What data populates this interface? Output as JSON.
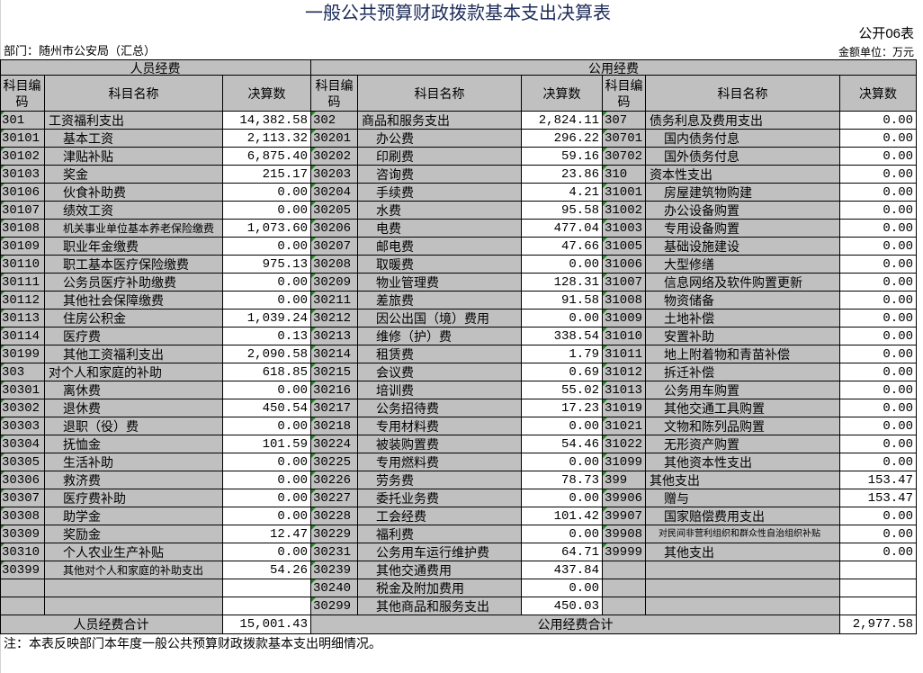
{
  "title": "一般公共预算财政拨款基本支出决算表",
  "form_no": "公开06表",
  "department": "部门：随州市公安局（汇总）",
  "unit": "金额单位：万元",
  "groups": {
    "personnel": "人员经费",
    "public": "公用经费"
  },
  "headers": {
    "code": "科目编码",
    "name": "科目名称",
    "amount": "决算数"
  },
  "personnel_rows": [
    {
      "code": "301",
      "name": "工资福利支出",
      "amount": "14,382.58",
      "level": 0
    },
    {
      "code": "30101",
      "name": "基本工资",
      "amount": "2,113.32",
      "level": 1
    },
    {
      "code": "30102",
      "name": "津贴补贴",
      "amount": "6,875.40",
      "level": 1
    },
    {
      "code": "30103",
      "name": "奖金",
      "amount": "215.17",
      "level": 1
    },
    {
      "code": "30106",
      "name": "伙食补助费",
      "amount": "0.00",
      "level": 1
    },
    {
      "code": "30107",
      "name": "绩效工资",
      "amount": "0.00",
      "level": 1
    },
    {
      "code": "30108",
      "name": "机关事业单位基本养老保险缴费",
      "amount": "1,073.60",
      "level": 2
    },
    {
      "code": "30109",
      "name": "职业年金缴费",
      "amount": "0.00",
      "level": 1
    },
    {
      "code": "30110",
      "name": "职工基本医疗保险缴费",
      "amount": "975.13",
      "level": 1
    },
    {
      "code": "30111",
      "name": "公务员医疗补助缴费",
      "amount": "0.00",
      "level": 1
    },
    {
      "code": "30112",
      "name": "其他社会保障缴费",
      "amount": "0.00",
      "level": 1
    },
    {
      "code": "30113",
      "name": "住房公积金",
      "amount": "1,039.24",
      "level": 1
    },
    {
      "code": "30114",
      "name": "医疗费",
      "amount": "0.13",
      "level": 1
    },
    {
      "code": "30199",
      "name": "其他工资福利支出",
      "amount": "2,090.58",
      "level": 1
    },
    {
      "code": "303",
      "name": "对个人和家庭的补助",
      "amount": "618.85",
      "level": 0
    },
    {
      "code": "30301",
      "name": "离休费",
      "amount": "0.00",
      "level": 1
    },
    {
      "code": "30302",
      "name": "退休费",
      "amount": "450.54",
      "level": 1
    },
    {
      "code": "30303",
      "name": "退职（役）费",
      "amount": "0.00",
      "level": 1
    },
    {
      "code": "30304",
      "name": "抚恤金",
      "amount": "101.59",
      "level": 1
    },
    {
      "code": "30305",
      "name": "生活补助",
      "amount": "0.00",
      "level": 1
    },
    {
      "code": "30306",
      "name": "救济费",
      "amount": "0.00",
      "level": 1
    },
    {
      "code": "30307",
      "name": "医疗费补助",
      "amount": "0.00",
      "level": 1
    },
    {
      "code": "30308",
      "name": "助学金",
      "amount": "0.00",
      "level": 1
    },
    {
      "code": "30309",
      "name": "奖励金",
      "amount": "12.47",
      "level": 1
    },
    {
      "code": "30310",
      "name": "个人农业生产补贴",
      "amount": "0.00",
      "level": 1
    },
    {
      "code": "30399",
      "name": "其他对个人和家庭的补助支出",
      "amount": "54.26",
      "level": 2
    }
  ],
  "public_rows_1": [
    {
      "code": "302",
      "name": "商品和服务支出",
      "amount": "2,824.11",
      "level": 0
    },
    {
      "code": "30201",
      "name": "办公费",
      "amount": "296.22",
      "level": 1
    },
    {
      "code": "30202",
      "name": "印刷费",
      "amount": "59.16",
      "level": 1
    },
    {
      "code": "30203",
      "name": "咨询费",
      "amount": "23.86",
      "level": 1
    },
    {
      "code": "30204",
      "name": "手续费",
      "amount": "4.21",
      "level": 1
    },
    {
      "code": "30205",
      "name": "水费",
      "amount": "95.58",
      "level": 1
    },
    {
      "code": "30206",
      "name": "电费",
      "amount": "477.04",
      "level": 1
    },
    {
      "code": "30207",
      "name": "邮电费",
      "amount": "47.66",
      "level": 1
    },
    {
      "code": "30208",
      "name": "取暖费",
      "amount": "0.00",
      "level": 1
    },
    {
      "code": "30209",
      "name": "物业管理费",
      "amount": "128.31",
      "level": 1
    },
    {
      "code": "30211",
      "name": "差旅费",
      "amount": "91.58",
      "level": 1
    },
    {
      "code": "30212",
      "name": "因公出国（境）费用",
      "amount": "0.00",
      "level": 1
    },
    {
      "code": "30213",
      "name": "维修（护）费",
      "amount": "338.54",
      "level": 1
    },
    {
      "code": "30214",
      "name": "租赁费",
      "amount": "1.79",
      "level": 1
    },
    {
      "code": "30215",
      "name": "会议费",
      "amount": "0.69",
      "level": 1
    },
    {
      "code": "30216",
      "name": "培训费",
      "amount": "55.02",
      "level": 1
    },
    {
      "code": "30217",
      "name": "公务招待费",
      "amount": "17.23",
      "level": 1
    },
    {
      "code": "30218",
      "name": "专用材料费",
      "amount": "0.00",
      "level": 1
    },
    {
      "code": "30224",
      "name": "被装购置费",
      "amount": "54.46",
      "level": 1
    },
    {
      "code": "30225",
      "name": "专用燃料费",
      "amount": "0.00",
      "level": 1
    },
    {
      "code": "30226",
      "name": "劳务费",
      "amount": "78.73",
      "level": 1
    },
    {
      "code": "30227",
      "name": "委托业务费",
      "amount": "0.00",
      "level": 1
    },
    {
      "code": "30228",
      "name": "工会经费",
      "amount": "101.42",
      "level": 1
    },
    {
      "code": "30229",
      "name": "福利费",
      "amount": "0.00",
      "level": 1
    },
    {
      "code": "30231",
      "name": "公务用车运行维护费",
      "amount": "64.71",
      "level": 1
    },
    {
      "code": "30239",
      "name": "其他交通费用",
      "amount": "437.84",
      "level": 1
    },
    {
      "code": "30240",
      "name": "税金及附加费用",
      "amount": "0.00",
      "level": 1
    },
    {
      "code": "30299",
      "name": "其他商品和服务支出",
      "amount": "450.03",
      "level": 1
    }
  ],
  "public_rows_2": [
    {
      "code": "307",
      "name": "债务利息及费用支出",
      "amount": "0.00",
      "level": 0
    },
    {
      "code": "30701",
      "name": "国内债务付息",
      "amount": "0.00",
      "level": 1
    },
    {
      "code": "30702",
      "name": "国外债务付息",
      "amount": "0.00",
      "level": 1
    },
    {
      "code": "310",
      "name": "资本性支出",
      "amount": "0.00",
      "level": 0
    },
    {
      "code": "31001",
      "name": "房屋建筑物购建",
      "amount": "0.00",
      "level": 1
    },
    {
      "code": "31002",
      "name": "办公设备购置",
      "amount": "0.00",
      "level": 1
    },
    {
      "code": "31003",
      "name": "专用设备购置",
      "amount": "0.00",
      "level": 1
    },
    {
      "code": "31005",
      "name": "基础设施建设",
      "amount": "0.00",
      "level": 1
    },
    {
      "code": "31006",
      "name": "大型修缮",
      "amount": "0.00",
      "level": 1
    },
    {
      "code": "31007",
      "name": "信息网络及软件购置更新",
      "amount": "0.00",
      "level": 1
    },
    {
      "code": "31008",
      "name": "物资储备",
      "amount": "0.00",
      "level": 1
    },
    {
      "code": "31009",
      "name": "土地补偿",
      "amount": "0.00",
      "level": 1
    },
    {
      "code": "31010",
      "name": "安置补助",
      "amount": "0.00",
      "level": 1
    },
    {
      "code": "31011",
      "name": "地上附着物和青苗补偿",
      "amount": "0.00",
      "level": 1
    },
    {
      "code": "31012",
      "name": "拆迁补偿",
      "amount": "0.00",
      "level": 1
    },
    {
      "code": "31013",
      "name": "公务用车购置",
      "amount": "0.00",
      "level": 1
    },
    {
      "code": "31019",
      "name": "其他交通工具购置",
      "amount": "0.00",
      "level": 1
    },
    {
      "code": "31021",
      "name": "文物和陈列品购置",
      "amount": "0.00",
      "level": 1
    },
    {
      "code": "31022",
      "name": "无形资产购置",
      "amount": "0.00",
      "level": 1
    },
    {
      "code": "31099",
      "name": "其他资本性支出",
      "amount": "0.00",
      "level": 1
    },
    {
      "code": "399",
      "name": "其他支出",
      "amount": "153.47",
      "level": 0
    },
    {
      "code": "39906",
      "name": "赠与",
      "amount": "153.47",
      "level": 1
    },
    {
      "code": "39907",
      "name": "国家赔偿费用支出",
      "amount": "0.00",
      "level": 1
    },
    {
      "code": "39908",
      "name": "对民间非营利组织和群众性自治组织补贴",
      "amount": "0.00",
      "level": 3
    },
    {
      "code": "39999",
      "name": "其他支出",
      "amount": "0.00",
      "level": 1
    }
  ],
  "totals": {
    "personnel_label": "人员经费合计",
    "personnel_amount": "15,001.43",
    "public_label": "公用经费合计",
    "public_amount": "2,977.58"
  },
  "note": "注：本表反映部门本年度一般公共预算财政拨款基本支出明细情况。",
  "colors": {
    "header_bg": "#c0c0c0",
    "cell_bg": "#ffffff",
    "title": "#1c2b5a",
    "marker": "#1a8a1a"
  }
}
